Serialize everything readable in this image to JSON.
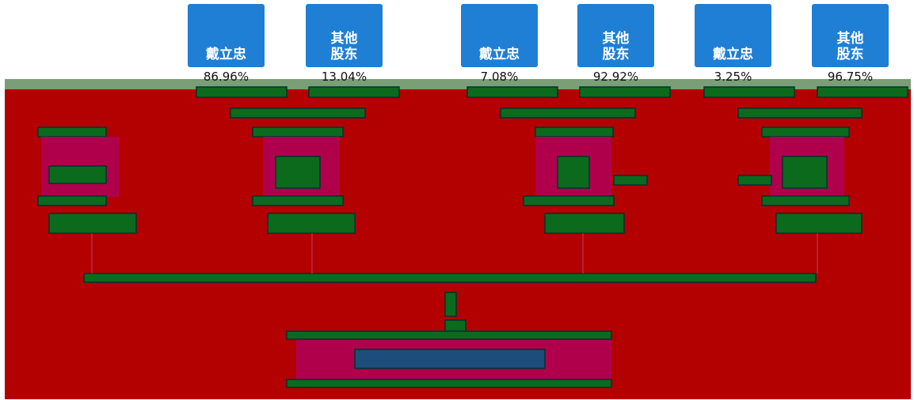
{
  "holders": [
    {
      "label": "戴立忠",
      "percent": "86.96%"
    },
    {
      "label": "其他股东",
      "percent": "13.04%"
    },
    {
      "label": "戴立忠",
      "percent": "7.08%"
    },
    {
      "label": "其他股东",
      "percent": "92.92%"
    },
    {
      "label": "戴立忠",
      "percent": "3.25%"
    },
    {
      "label": "其他股东",
      "percent": "96.75%"
    }
  ]
}
